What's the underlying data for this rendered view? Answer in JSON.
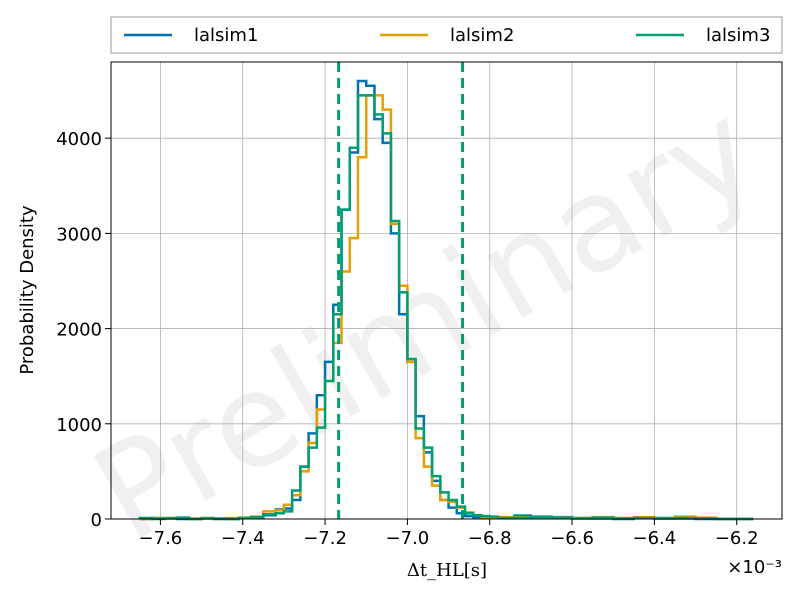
{
  "chart_data": {
    "type": "histogram",
    "xlabel": "Δt_HL[s]",
    "ylabel": "Probability Density",
    "x_offset_label": "×10⁻³",
    "watermark": "Preliminary",
    "xlim": [
      -7.72,
      -6.09
    ],
    "ylim": [
      0,
      4800
    ],
    "x_ticks": [
      -7.6,
      -7.4,
      -7.2,
      -7.0,
      -6.8,
      -6.6,
      -6.4,
      -6.2
    ],
    "x_tick_labels": [
      "−7.6",
      "−7.4",
      "−7.2",
      "−7.0",
      "−6.8",
      "−6.6",
      "−6.4",
      "−6.2"
    ],
    "y_ticks": [
      0,
      1000,
      2000,
      3000,
      4000
    ],
    "y_tick_labels": [
      "0",
      "1000",
      "2000",
      "3000",
      "4000"
    ],
    "grid": true,
    "legend_position": "top, outside, 3 columns",
    "bin_edges": [
      -7.65,
      -7.62,
      -7.59,
      -7.56,
      -7.53,
      -7.5,
      -7.47,
      -7.44,
      -7.41,
      -7.38,
      -7.35,
      -7.32,
      -7.3,
      -7.28,
      -7.26,
      -7.24,
      -7.22,
      -7.2,
      -7.18,
      -7.16,
      -7.14,
      -7.12,
      -7.1,
      -7.08,
      -7.06,
      -7.04,
      -7.02,
      -7.0,
      -6.98,
      -6.96,
      -6.94,
      -6.92,
      -6.9,
      -6.88,
      -6.86,
      -6.84,
      -6.82,
      -6.8,
      -6.78,
      -6.74,
      -6.7,
      -6.65,
      -6.6,
      -6.55,
      -6.5,
      -6.45,
      -6.4,
      -6.35,
      -6.3,
      -6.25,
      -6.2,
      -6.16
    ],
    "series": [
      {
        "name": "lalsim1",
        "color": "#0072b2",
        "values": [
          0,
          10,
          10,
          0,
          0,
          10,
          5,
          0,
          10,
          20,
          40,
          100,
          110,
          200,
          550,
          900,
          1300,
          1650,
          2250,
          3250,
          3850,
          4600,
          4550,
          4200,
          3950,
          3000,
          2150,
          1650,
          1080,
          700,
          400,
          200,
          120,
          60,
          30,
          20,
          15,
          20,
          10,
          35,
          25,
          20,
          10,
          5,
          0,
          15,
          10,
          5,
          0,
          0,
          0
        ],
        "ci_lines": []
      },
      {
        "name": "lalsim2",
        "color": "#e69f00",
        "values": [
          0,
          5,
          10,
          15,
          5,
          10,
          0,
          10,
          15,
          25,
          80,
          90,
          150,
          250,
          500,
          800,
          1150,
          1450,
          1850,
          2600,
          2950,
          3800,
          4450,
          4450,
          4300,
          3100,
          2450,
          1650,
          850,
          550,
          350,
          200,
          180,
          120,
          70,
          40,
          20,
          10,
          20,
          20,
          20,
          15,
          10,
          20,
          10,
          20,
          5,
          25,
          15,
          0,
          0
        ],
        "ci_lines": []
      },
      {
        "name": "lalsim3",
        "color": "#009e73",
        "values": [
          10,
          0,
          5,
          15,
          0,
          5,
          0,
          0,
          10,
          20,
          50,
          60,
          80,
          300,
          550,
          750,
          960,
          1450,
          2150,
          3250,
          3900,
          4450,
          4450,
          4250,
          4050,
          3130,
          2380,
          1680,
          950,
          750,
          450,
          280,
          200,
          130,
          60,
          40,
          30,
          25,
          10,
          15,
          20,
          10,
          5,
          15,
          5,
          10,
          5,
          10,
          5,
          0,
          0
        ],
        "ci_lines": [
          -7.167,
          -6.866
        ]
      }
    ]
  }
}
